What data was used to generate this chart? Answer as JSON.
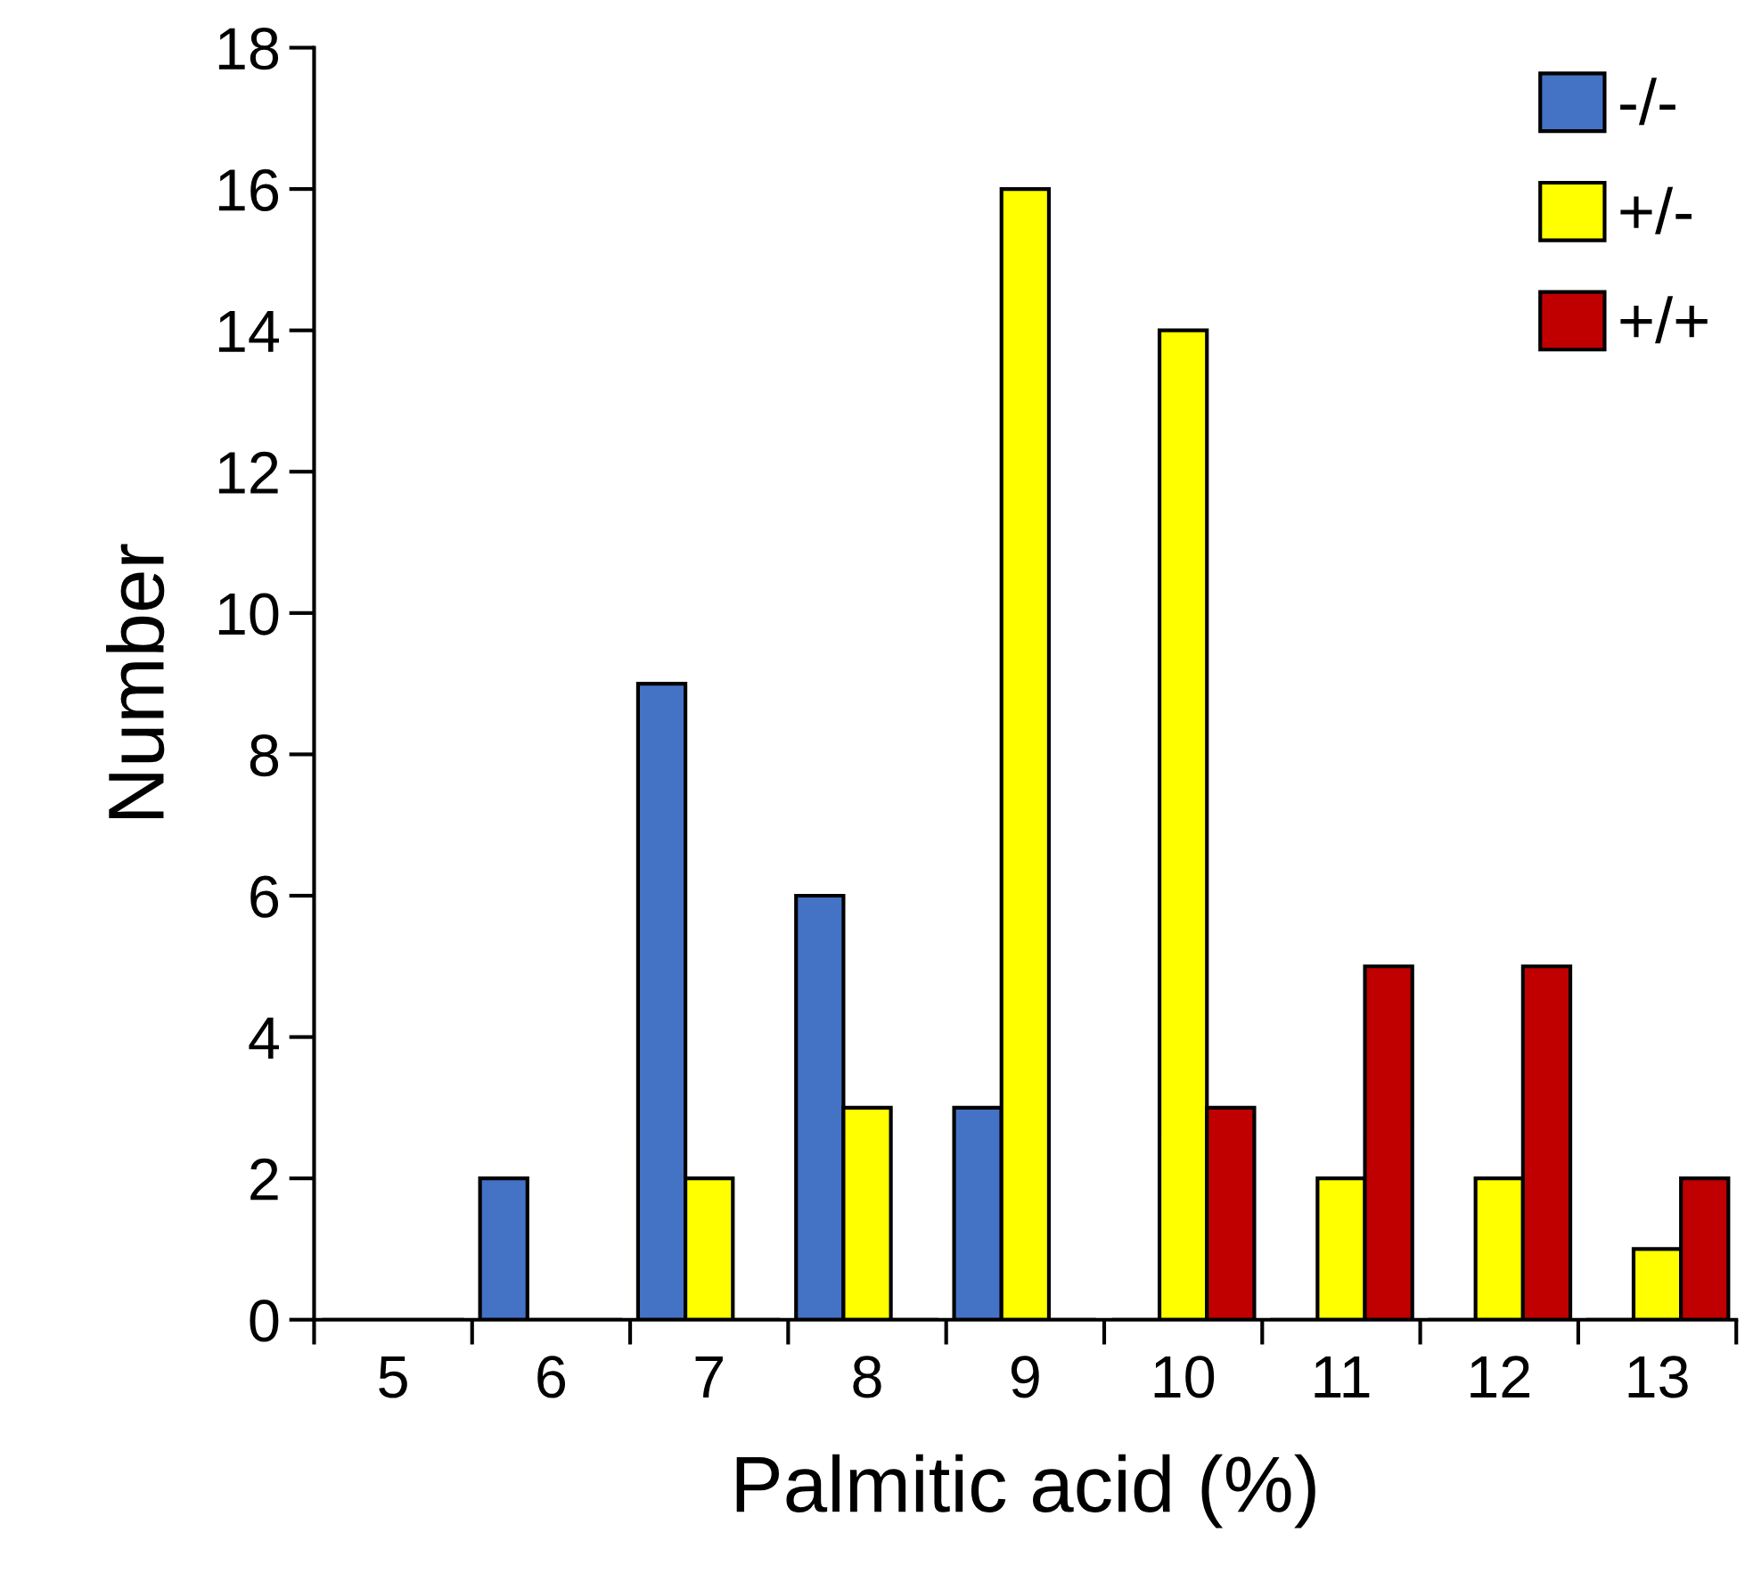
{
  "chart_data": {
    "type": "bar",
    "xlabel": "Palmitic acid (%)",
    "ylabel": "Number",
    "categories": [
      "5",
      "6",
      "7",
      "8",
      "9",
      "10",
      "11",
      "12",
      "13"
    ],
    "series": [
      {
        "name": "-/-",
        "color": "#4472c4",
        "values": [
          0,
          2,
          9,
          6,
          3,
          0,
          0,
          0,
          0
        ]
      },
      {
        "name": "+/-",
        "color": "#ffff00",
        "values": [
          0,
          0,
          2,
          3,
          16,
          14,
          2,
          2,
          1
        ]
      },
      {
        "name": "+/+",
        "color": "#c00000",
        "values": [
          0,
          0,
          0,
          0,
          0,
          3,
          5,
          5,
          2
        ]
      }
    ],
    "ylim": [
      0,
      18
    ],
    "yticks": [
      0,
      2,
      4,
      6,
      8,
      10,
      12,
      14,
      16,
      18
    ],
    "grid": false,
    "legend": "top right"
  }
}
